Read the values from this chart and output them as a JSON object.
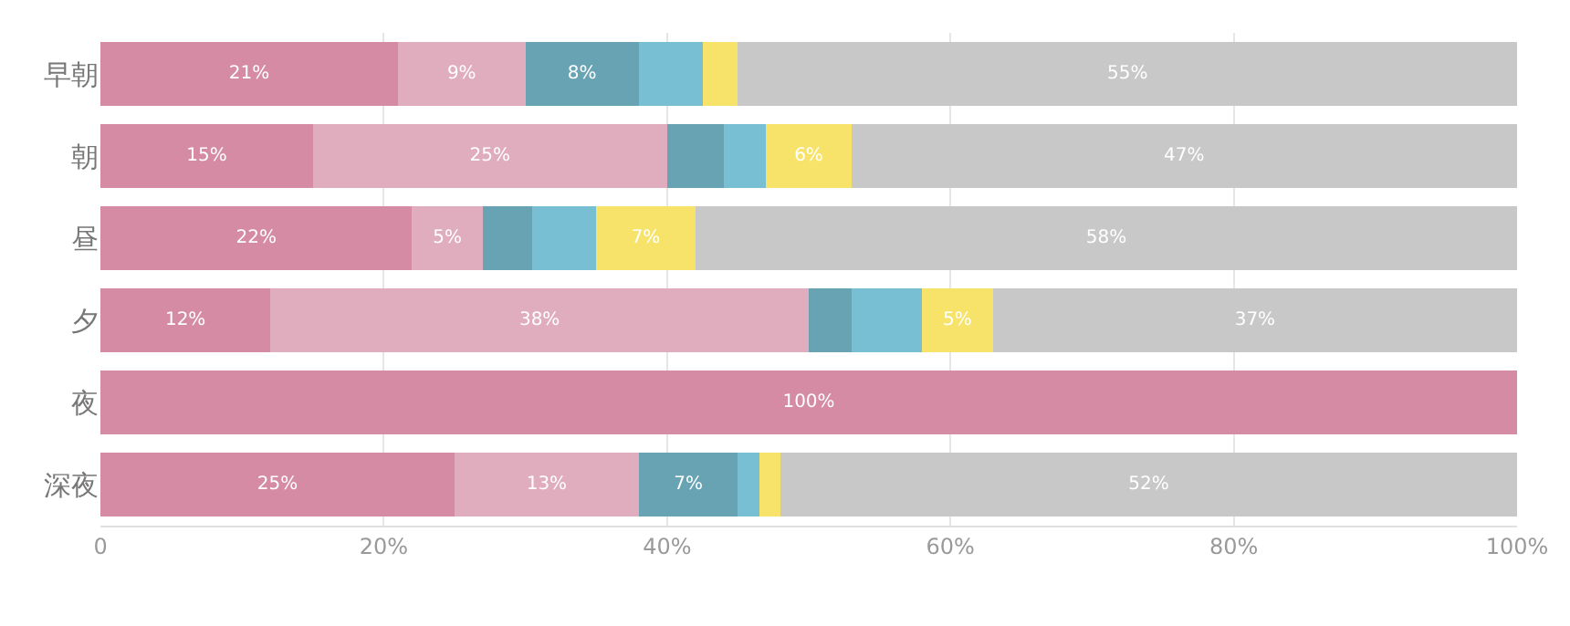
{
  "chart_data": {
    "type": "bar",
    "orientation": "horizontal",
    "stacked": true,
    "categories": [
      "早朝",
      "朝",
      "昼",
      "夕",
      "夜",
      "深夜"
    ],
    "series": [
      {
        "color": "#d48ba3",
        "values": [
          21,
          15,
          22,
          12,
          100,
          25
        ],
        "value_labels": [
          "21%",
          "15%",
          "22%",
          "12%",
          "100%",
          "25%"
        ]
      },
      {
        "color": "#e0adbf",
        "values": [
          9,
          25,
          5,
          38,
          0,
          13
        ],
        "value_labels": [
          "9%",
          "25%",
          "5%",
          "38%",
          null,
          "13%"
        ]
      },
      {
        "color": "#67a3b3",
        "values": [
          8,
          4,
          3.5,
          3,
          0,
          7
        ],
        "value_labels": [
          "8%",
          null,
          null,
          null,
          null,
          "7%"
        ]
      },
      {
        "color": "#79bfd4",
        "values": [
          4.5,
          3,
          4.5,
          5,
          0,
          1.5
        ],
        "value_labels": [
          null,
          null,
          null,
          null,
          null,
          null
        ]
      },
      {
        "color": "#f8e36a",
        "values": [
          2.5,
          6,
          7,
          5,
          0,
          1.5
        ],
        "value_labels": [
          null,
          "6%",
          "7%",
          "5%",
          null,
          null
        ]
      },
      {
        "color": "#c8c8c8",
        "values": [
          55,
          47,
          58,
          37,
          0,
          52
        ],
        "value_labels": [
          "55%",
          "47%",
          "58%",
          "37%",
          null,
          "52%"
        ]
      }
    ],
    "xlim": [
      0,
      100
    ],
    "xticks": [
      {
        "value": 0,
        "label": "0"
      },
      {
        "value": 20,
        "label": "20%"
      },
      {
        "value": 40,
        "label": "40%"
      },
      {
        "value": 60,
        "label": "60%"
      },
      {
        "value": 80,
        "label": "80%"
      },
      {
        "value": 100,
        "label": "100%"
      }
    ],
    "grid": "x"
  }
}
